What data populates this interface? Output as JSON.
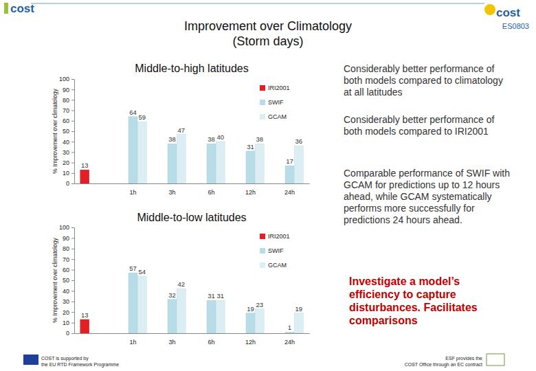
{
  "slide": {
    "title": [
      "Improvement over Climatology",
      "(Storm days)"
    ],
    "logos": {
      "left": "cost",
      "right": "cost",
      "code": "ES0803"
    },
    "notes": [
      "Considerably better performance of both models compared to climatology at all latitudes",
      "Considerably better performance of both models compared to IRI2001",
      "Comparable performance of SWIF with GCAM for predictions up to 12 hours ahead, while GCAM systematically performs more successfully for predictions 24 hours ahead."
    ],
    "highlight": "Investigate a model’s efficiency to capture disturbances. Facilitates comparisons",
    "footer_left": [
      "COST is supported by",
      "the EU RTD Framework Programme"
    ],
    "footer_right": [
      "ESF provides the",
      "COST Office through an EC contract"
    ]
  },
  "chart_data": [
    {
      "type": "bar",
      "title": "Middle-to-high latitudes",
      "ylabel": "% Improvement over climatology",
      "categories": [
        null,
        "1h",
        "3h",
        "6h",
        "12h",
        "24h"
      ],
      "series": [
        {
          "name": "IRI2001",
          "color": "#e31e24",
          "values": [
            13,
            null,
            null,
            null,
            null,
            null
          ]
        },
        {
          "name": "SWIF",
          "color": "#b7dee8",
          "values": [
            null,
            64,
            38,
            38,
            31,
            17
          ]
        },
        {
          "name": "GCAM",
          "color": "#daeef3",
          "values": [
            null,
            59,
            47,
            40,
            38,
            36
          ]
        }
      ],
      "ylim": [
        0,
        100
      ],
      "yticks": [
        0,
        10,
        20,
        30,
        40,
        50,
        60,
        70,
        80,
        90,
        100
      ],
      "grid": false,
      "legend": "top-right",
      "data_labels": true
    },
    {
      "type": "bar",
      "title": "Middle-to-low latitudes",
      "ylabel": "% Improvement over climatology",
      "categories": [
        null,
        "1h",
        "3h",
        "6h",
        "12h",
        "24h"
      ],
      "series": [
        {
          "name": "IRI2001",
          "color": "#e31e24",
          "values": [
            13,
            null,
            null,
            null,
            null,
            null
          ]
        },
        {
          "name": "SWIF",
          "color": "#b7dee8",
          "values": [
            null,
            57,
            32,
            31,
            19,
            1
          ]
        },
        {
          "name": "GCAM",
          "color": "#daeef3",
          "values": [
            null,
            54,
            42,
            31,
            23,
            19
          ]
        }
      ],
      "ylim": [
        0,
        100
      ],
      "yticks": [
        0,
        10,
        20,
        30,
        40,
        50,
        60,
        70,
        80,
        90,
        100
      ],
      "grid": false,
      "legend": "top-right",
      "data_labels": true
    }
  ]
}
